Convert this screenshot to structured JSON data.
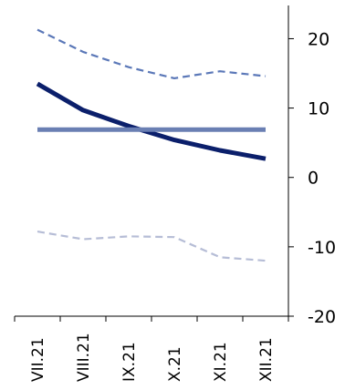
{
  "chart_data": {
    "type": "line",
    "title": "",
    "xlabel": "",
    "ylabel": "",
    "categories": [
      "VII.21",
      "VIII.21",
      "IX.21",
      "X.21",
      "XI.21",
      "XII.21"
    ],
    "ylim": [
      -20,
      24
    ],
    "yticks": [
      {
        "value": 20,
        "label": "20"
      },
      {
        "value": 10,
        "label": "10"
      },
      {
        "value": 0,
        "label": "0"
      },
      {
        "value": -10,
        "label": "-10"
      },
      {
        "value": -20,
        "label": "-20"
      }
    ],
    "y_axis_side": "right",
    "grid": false,
    "legend": "none",
    "series": [
      {
        "values": [
          13.5,
          9.7,
          7.4,
          5.4,
          3.9,
          2.7
        ],
        "color": "#0b1f6b",
        "style": "solid",
        "weight": "thick"
      },
      {
        "values": [
          6.9,
          6.9,
          6.9,
          6.9,
          6.9,
          6.9
        ],
        "color": "#6a7fb3",
        "style": "solid",
        "weight": "thick"
      },
      {
        "values": [
          21.3,
          18.1,
          15.9,
          14.3,
          15.3,
          14.6
        ],
        "color": "#5b78b8",
        "style": "dashed",
        "weight": "normal"
      },
      {
        "values": [
          -7.8,
          -8.9,
          -8.5,
          -8.6,
          -11.5,
          -12.0
        ],
        "color": "#b6bdd6",
        "style": "dashed",
        "weight": "normal"
      }
    ]
  }
}
